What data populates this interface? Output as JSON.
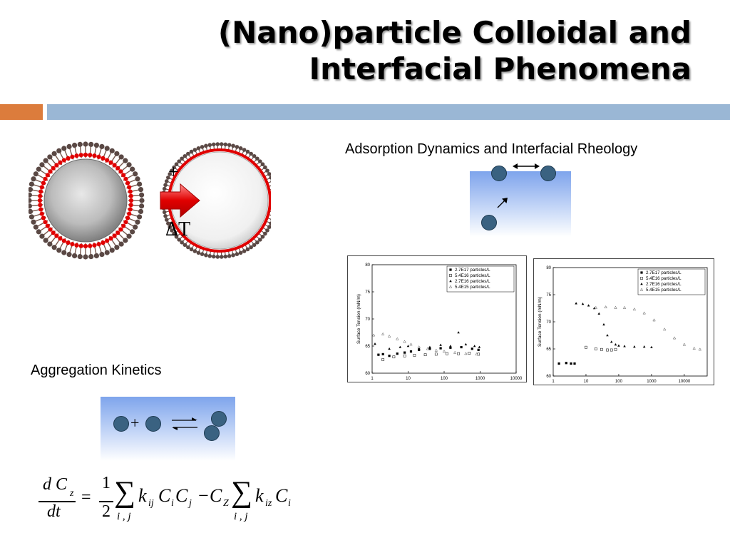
{
  "slide": {
    "title_line1": "(Nano)particle Colloidal and",
    "title_line2": "Interfacial Phenomena"
  },
  "colors": {
    "accent_orange": "#dc7c3c",
    "accent_blue": "#9ab7d5",
    "particle_dark": "#3a6281",
    "shell_red": "#e00000"
  },
  "particles": {
    "plus": "+",
    "delta_t": "ΔT"
  },
  "adsorption": {
    "heading": "Adsorption Dynamics and Interfacial Rheology"
  },
  "aggregation": {
    "heading": "Aggregation Kinetics",
    "plus": "+"
  },
  "equation": {
    "lhs_num": "d C",
    "lhs_sub": "z",
    "lhs_den": "dt",
    "equals": "=",
    "half_num": "1",
    "half_den": "2",
    "sum": "∑",
    "sum_limits": "i , j",
    "k1": "k",
    "k1_sub": "ij",
    "c1": "C",
    "c1_sub": "i",
    "c2": "C",
    "c2_sub": "j",
    "minus": "−",
    "cz": "C",
    "cz_sub": "Z",
    "k2": "k",
    "k2_sub": "iz",
    "c3": "C",
    "c3_sub": "i"
  },
  "chart_data": [
    {
      "type": "scatter",
      "xlabel": "Time (s)",
      "ylabel": "Surface Tension (mN/m)",
      "xscale": "log",
      "xlim": [
        1,
        10000
      ],
      "ylim": [
        60,
        80
      ],
      "xticks": [
        "1",
        "10",
        "100",
        "1000",
        "10000"
      ],
      "yticks": [
        "60",
        "65",
        "70",
        "75",
        "80"
      ],
      "legend_position": "top-right",
      "series": [
        {
          "name": "2.7E17 particles/L",
          "marker": "square-filled",
          "x": [
            1.5,
            2,
            3,
            5,
            8,
            12,
            20,
            40,
            80,
            150,
            300,
            600,
            900
          ],
          "y": [
            63.4,
            63.5,
            63.2,
            63.6,
            63.8,
            64.0,
            64.3,
            64.5,
            64.6,
            64.7,
            64.8,
            64.5,
            64.3
          ]
        },
        {
          "name": "5.4E16 particles/L",
          "marker": "square-open",
          "x": [
            2,
            4,
            8,
            15,
            30,
            60,
            120,
            250,
            500,
            900
          ],
          "y": [
            62.5,
            63.0,
            63.2,
            63.3,
            63.4,
            63.5,
            63.6,
            63.6,
            63.7,
            63.5
          ]
        },
        {
          "name": "2.7E16 particles/L",
          "marker": "triangle-filled",
          "x": [
            1.2,
            3,
            6,
            10,
            20,
            40,
            80,
            150,
            250,
            400,
            700,
            950
          ],
          "y": [
            65.4,
            64.5,
            64.8,
            65.0,
            64.6,
            64.8,
            65.2,
            65.0,
            67.5,
            65.3,
            65.0,
            64.8
          ]
        },
        {
          "name": "5.4E15 particles/L",
          "marker": "triangle-open",
          "x": [
            1.1,
            2,
            3,
            5,
            8,
            12,
            20,
            35,
            60,
            100,
            200,
            400,
            800
          ],
          "y": [
            67.0,
            67.2,
            66.8,
            66.3,
            65.8,
            65.3,
            64.8,
            64.5,
            64.2,
            64.0,
            63.8,
            63.6,
            63.5
          ]
        }
      ]
    },
    {
      "type": "scatter",
      "xlabel": "Time (s)",
      "ylabel": "Surface Tension (mN/m)",
      "xscale": "log",
      "xlim": [
        1,
        50000
      ],
      "ylim": [
        60,
        80
      ],
      "xticks": [
        "1",
        "10",
        "100",
        "1000",
        "10000"
      ],
      "yticks": [
        "60",
        "65",
        "70",
        "75",
        "80"
      ],
      "legend_position": "top-right",
      "series": [
        {
          "name": "2.7E17 particles/L",
          "marker": "square-filled",
          "x": [
            1.5,
            2.5,
            3.5,
            4.5
          ],
          "y": [
            62.3,
            62.4,
            62.3,
            62.3
          ]
        },
        {
          "name": "5.4E16 particles/L",
          "marker": "square-open",
          "x": [
            10,
            20,
            30,
            45,
            60,
            80
          ],
          "y": [
            65.3,
            65.0,
            64.9,
            64.8,
            64.8,
            64.9
          ]
        },
        {
          "name": "2.7E16 particles/L",
          "marker": "triangle-filled",
          "x": [
            5,
            8,
            12,
            18,
            25,
            35,
            45,
            60,
            80,
            100,
            150,
            300,
            600,
            1000
          ],
          "y": [
            73.4,
            73.3,
            73.0,
            72.5,
            71.5,
            69.5,
            67.5,
            66.3,
            65.8,
            65.6,
            65.5,
            65.4,
            65.4,
            65.3
          ]
        },
        {
          "name": "5.4E15 particles/L",
          "marker": "triangle-open",
          "x": [
            20,
            40,
            80,
            150,
            300,
            600,
            1200,
            2500,
            5000,
            10000,
            20000,
            30000
          ],
          "y": [
            72.6,
            72.7,
            72.6,
            72.6,
            72.3,
            71.6,
            70.3,
            68.6,
            67.0,
            65.8,
            65.1,
            64.9
          ]
        }
      ]
    }
  ]
}
